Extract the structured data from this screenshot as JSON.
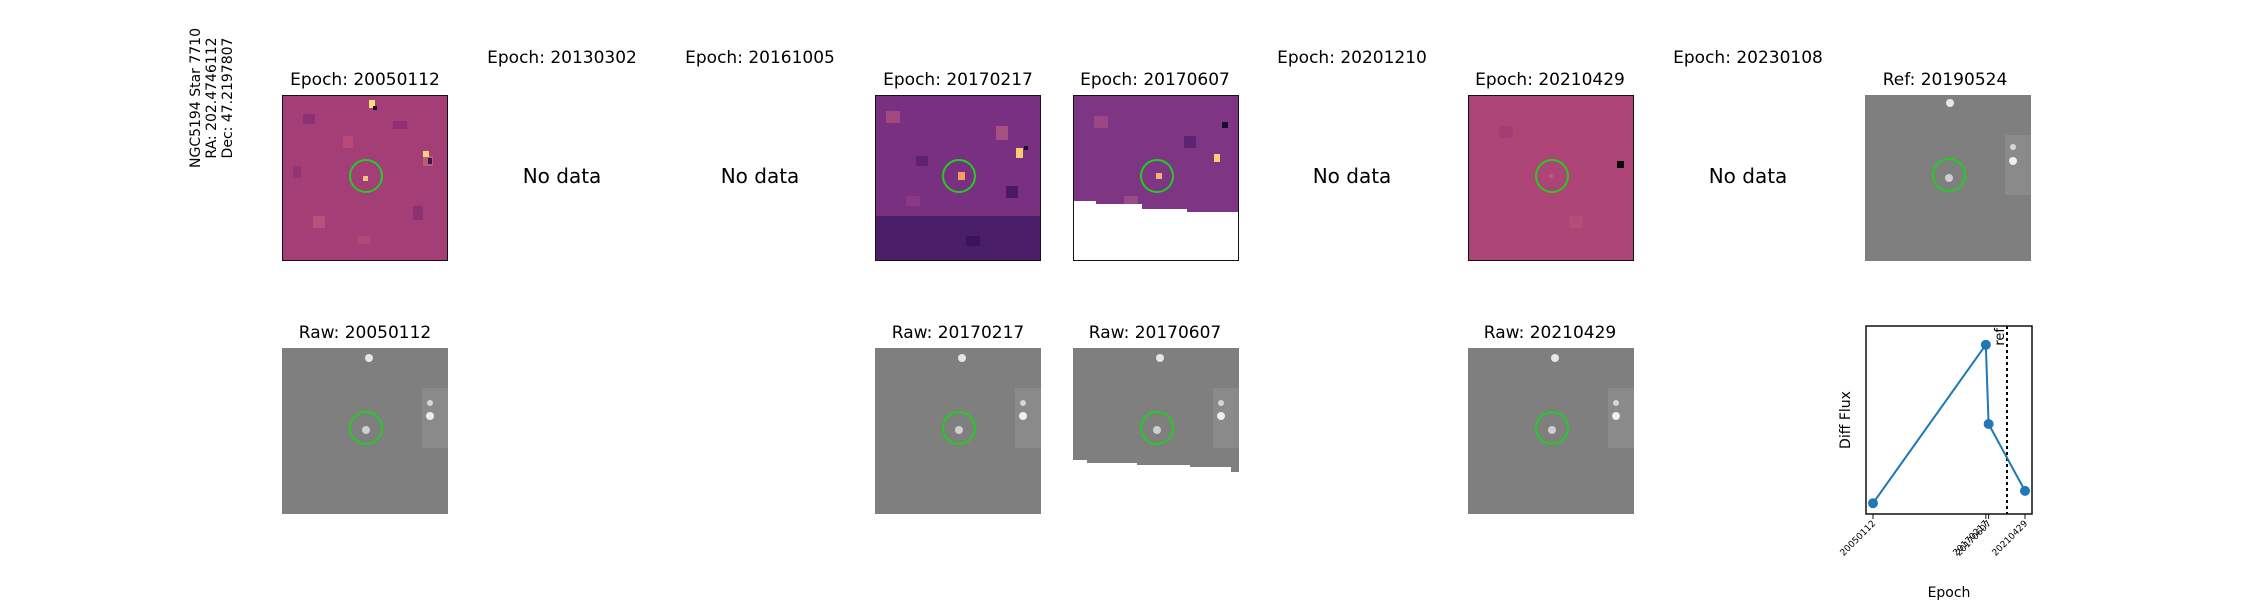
{
  "header": {
    "star_name": "NGC5194 Star 7710",
    "ra": "RA: 202.4746112",
    "dec": "Dec: 47.2197807"
  },
  "epochs": [
    {
      "title": "Epoch: 20050112",
      "status": "data"
    },
    {
      "title": "Epoch: 20130302",
      "status": "No data"
    },
    {
      "title": "Epoch: 20161005",
      "status": "No data"
    },
    {
      "title": "Epoch: 20170217",
      "status": "data"
    },
    {
      "title": "Epoch: 20170607",
      "status": "data"
    },
    {
      "title": "Epoch: 20201210",
      "status": "No data"
    },
    {
      "title": "Epoch: 20210429",
      "status": "data"
    },
    {
      "title": "Epoch: 20230108",
      "status": "No data"
    }
  ],
  "reference": {
    "title": "Ref: 20190524"
  },
  "raw": [
    {
      "title": "Raw: 20050112"
    },
    {
      "title": "Raw: 20170217"
    },
    {
      "title": "Raw: 20170607"
    },
    {
      "title": "Raw: 20210429"
    }
  ],
  "colors": {
    "aperture": "#22cc22",
    "diff_base": "#a63d78",
    "diff_dark": "#3d1a60",
    "raw_base": "#7f7f7f",
    "series": "#1f77b4"
  },
  "chart_data": {
    "type": "line",
    "title": "",
    "xlabel": "Epoch",
    "ylabel": "Diff Flux",
    "categories": [
      "20050112",
      "20170217",
      "20170607",
      "20210429"
    ],
    "x": [
      2005.03,
      2017.13,
      2017.43,
      2021.33
    ],
    "series": [
      {
        "name": "Diff Flux",
        "values": [
          0.05,
          0.95,
          0.5,
          0.12
        ]
      }
    ],
    "ylim": [
      0,
      1
    ],
    "reference_line": {
      "label": "ref",
      "x": 2019.4
    },
    "grid": false,
    "legend": "none"
  }
}
